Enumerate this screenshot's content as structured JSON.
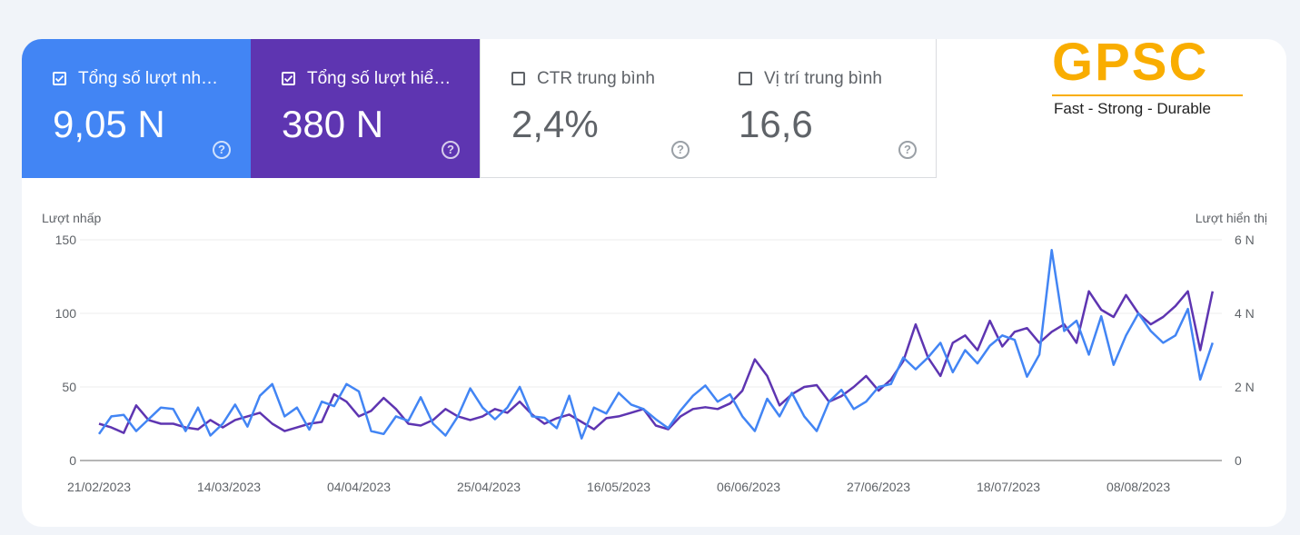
{
  "cards": [
    {
      "label": "Tổng số lượt nh…",
      "value": "9,05 N",
      "checked": true,
      "color": "#4285f4"
    },
    {
      "label": "Tổng số lượt hiể…",
      "value": "380 N",
      "checked": true,
      "color": "#5e35b1"
    },
    {
      "label": "CTR trung bình",
      "value": "2,4%",
      "checked": false,
      "color": "#ffffff"
    },
    {
      "label": "Vị trí trung bình",
      "value": "16,6",
      "checked": false,
      "color": "#ffffff"
    }
  ],
  "help_icon": "?",
  "logo": {
    "text": "GPSC",
    "tagline": "Fast - Strong - Durable",
    "color": "#f9ad00"
  },
  "chart_data": {
    "type": "line",
    "ylabel": "Lượt nhấp",
    "y2label": "Lượt hiển thị",
    "ylim": [
      0,
      150
    ],
    "y2lim": [
      0,
      6
    ],
    "yticks": [
      "0",
      "50",
      "100",
      "150"
    ],
    "y2ticks": [
      "0",
      "2 N",
      "4 N",
      "6 N"
    ],
    "xticks": [
      "21/02/2023",
      "14/03/2023",
      "04/04/2023",
      "25/04/2023",
      "16/05/2023",
      "06/06/2023",
      "27/06/2023",
      "18/07/2023",
      "08/08/2023"
    ],
    "x_start": "21/02/2023",
    "x_step_days": 2,
    "grid": true,
    "series": [
      {
        "axis": "left",
        "unit": "clicks",
        "color": "#4285f4",
        "values": [
          18,
          30,
          31,
          20,
          28,
          36,
          35,
          20,
          36,
          17,
          25,
          38,
          23,
          44,
          52,
          30,
          36,
          21,
          40,
          37,
          52,
          47,
          20,
          18,
          30,
          27,
          43,
          25,
          17,
          30,
          49,
          36,
          28,
          36,
          50,
          30,
          29,
          22,
          44,
          15,
          36,
          32,
          46,
          38,
          35,
          28,
          22,
          34,
          44,
          51,
          40,
          45,
          30,
          20,
          42,
          30,
          46,
          30,
          20,
          40,
          48,
          35,
          40,
          50,
          52,
          70,
          62,
          70,
          80,
          60,
          75,
          66,
          78,
          85,
          82,
          57,
          72,
          143,
          88,
          95,
          72,
          98,
          65,
          85,
          100,
          88,
          80,
          85,
          103,
          55,
          80
        ]
      },
      {
        "axis": "right",
        "unit": "N",
        "color": "#5e35b1",
        "values": [
          1.0,
          0.9,
          0.75,
          1.5,
          1.1,
          1.0,
          1.0,
          0.9,
          0.85,
          1.1,
          0.9,
          1.1,
          1.2,
          1.3,
          1.0,
          0.8,
          0.9,
          1.0,
          1.05,
          1.8,
          1.6,
          1.2,
          1.35,
          1.7,
          1.4,
          1.0,
          0.95,
          1.1,
          1.4,
          1.2,
          1.1,
          1.2,
          1.4,
          1.3,
          1.6,
          1.25,
          1.0,
          1.15,
          1.25,
          1.05,
          0.85,
          1.15,
          1.2,
          1.3,
          1.4,
          0.95,
          0.85,
          1.2,
          1.4,
          1.45,
          1.4,
          1.55,
          1.9,
          2.75,
          2.3,
          1.5,
          1.8,
          2.0,
          2.05,
          1.6,
          1.75,
          2.0,
          2.3,
          1.9,
          2.2,
          2.7,
          3.7,
          2.8,
          2.3,
          3.2,
          3.4,
          3.0,
          3.8,
          3.1,
          3.5,
          3.6,
          3.2,
          3.5,
          3.7,
          3.2,
          4.6,
          4.1,
          3.9,
          4.5,
          4.0,
          3.7,
          3.9,
          4.2,
          4.6,
          3.0,
          4.6
        ]
      }
    ]
  }
}
